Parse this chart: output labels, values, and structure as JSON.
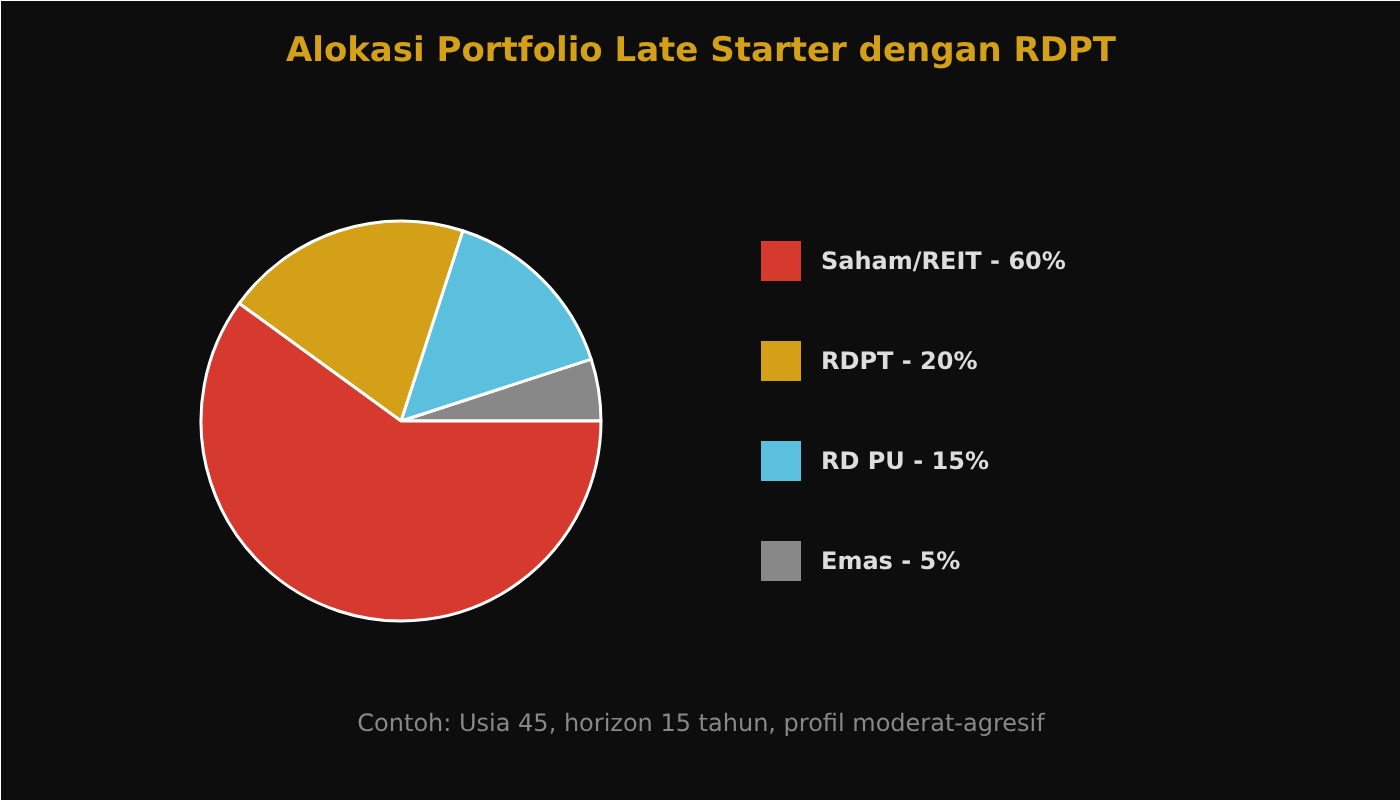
{
  "chart_data": {
    "type": "pie",
    "title": "Alokasi Portfolio Late Starter dengan RDPT",
    "categories": [
      "Saham/REIT - 60%",
      "RDPT - 20%",
      "RD PU - 15%",
      "Emas - 5%"
    ],
    "values": [
      60,
      20,
      15,
      5
    ],
    "colors": [
      "#d63a2f",
      "#d4a017",
      "#5bc0de",
      "#888888"
    ],
    "legend": "right",
    "annotations": [
      "Contoh: Usia 45, horizon 15 tahun, profil moderat-agresif"
    ]
  }
}
